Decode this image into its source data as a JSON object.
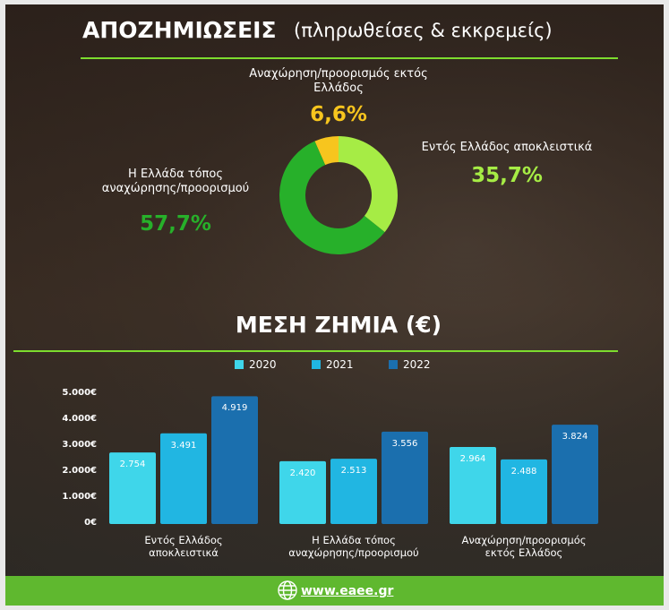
{
  "chart_data": [
    {
      "type": "pie",
      "title": "ΑΠΟΖΗΜΙΩΣΕΙΣ",
      "subtitle": "(πληρωθείσες & εκκρεμείς)",
      "categories": [
        "Αναχώρηση/προορισμός εκτός\nΕλλάδος",
        "Εντός Ελλάδος αποκλειστικά",
        "Η Ελλάδα τόπος\nαναχώρησης/προορισμού"
      ],
      "values": [
        6.6,
        35.7,
        57.7
      ],
      "value_labels": [
        "6,6%",
        "35,7%",
        "57,7%"
      ],
      "colors": [
        "#f7c51e",
        "#a6ec45",
        "#27b02a"
      ],
      "donut": true
    },
    {
      "type": "bar",
      "title": "ΜΕΣΗ ΖΗΜΙΑ (€)",
      "categories": [
        "Εντός Ελλάδος\nαποκλειστικά",
        "Η Ελλάδα τόπος\nαναχώρησης/προορισμού",
        "Αναχώρηση/προορισμός\nεκτός Ελλάδος"
      ],
      "series": [
        {
          "name": "2020",
          "color": "#3fd6ea",
          "values": [
            2754,
            2420,
            2964
          ],
          "value_labels": [
            "2.754",
            "2.420",
            "2.964"
          ]
        },
        {
          "name": "2021",
          "color": "#21b6e2",
          "values": [
            3491,
            2513,
            2488
          ],
          "value_labels": [
            "3.491",
            "2.513",
            "2.488"
          ]
        },
        {
          "name": "2022",
          "color": "#1b6fae",
          "values": [
            4919,
            3556,
            3824
          ],
          "value_labels": [
            "4.919",
            "3.556",
            "3.824"
          ]
        }
      ],
      "ylim": [
        0,
        5000
      ],
      "yticks": [
        {
          "value": 0,
          "label": "0€"
        },
        {
          "value": 1000,
          "label": "1.000€"
        },
        {
          "value": 2000,
          "label": "2.000€"
        },
        {
          "value": 3000,
          "label": "3.000€"
        },
        {
          "value": 4000,
          "label": "4.000€"
        },
        {
          "value": 5000,
          "label": "5.000€"
        }
      ],
      "grid": false,
      "legend": "top"
    }
  ],
  "footer": {
    "url": "www.eaee.gr"
  }
}
